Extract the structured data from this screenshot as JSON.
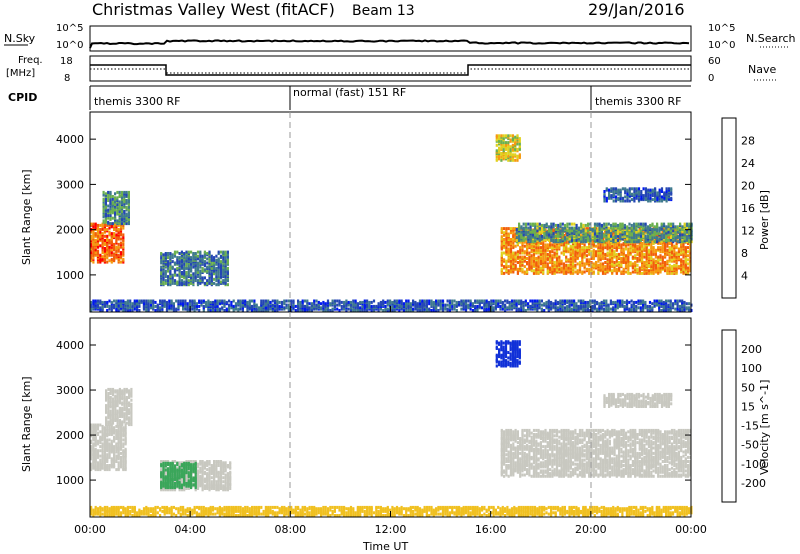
{
  "header": {
    "title": "Christmas Valley West (fitACF)",
    "beam": "Beam 13",
    "date": "29/Jan/2016"
  },
  "nsky_panel": {
    "left_label": "N.Sky",
    "right_label": "N.Search",
    "tick_top": "10^5",
    "tick_bottom": "10^0",
    "right_tick_top": "10^5",
    "right_tick_bottom": "10^0"
  },
  "freq_panel": {
    "left_label_1": "Freq.",
    "left_label_2": "[MHz]",
    "right_label": "Nave",
    "tick_top": "18",
    "tick_bottom": "8",
    "right_tick_top": "60",
    "right_tick_bottom": "0"
  },
  "cpid_panel": {
    "label": "CPID",
    "segments": [
      {
        "text": "themis 3300 RF",
        "start_hr": 0
      },
      {
        "text": "normal (fast) 151 RF",
        "start_hr": 8
      },
      {
        "text": "themis 3300 RF",
        "start_hr": 20
      }
    ]
  },
  "chart_data": [
    {
      "type": "heatmap",
      "panel": "power",
      "ylabel": "Slant Range [km]",
      "y_ticks": [
        "1000",
        "2000",
        "3000",
        "4000"
      ],
      "y_tick_values": [
        1000,
        2000,
        3000,
        4000
      ],
      "ylim": [
        180,
        4600
      ],
      "xlim_hours": [
        0,
        24
      ],
      "colorbar": {
        "label": "Power [dB]",
        "ticks": [
          "4",
          "8",
          "12",
          "16",
          "20",
          "24",
          "28"
        ],
        "colors": [
          "#0018f0",
          "#2446b4",
          "#3f7a8e",
          "#6bb04f",
          "#e0d21f",
          "#f59a10",
          "#f25e0a",
          "#ff0000"
        ]
      },
      "regions": [
        {
          "t0": 0.0,
          "t1": 1.3,
          "r0": 1250,
          "r1": 2100,
          "value": 27
        },
        {
          "t0": 0.5,
          "t1": 1.6,
          "r0": 2100,
          "r1": 2800,
          "value": 13
        },
        {
          "t0": 2.8,
          "t1": 5.5,
          "r0": 750,
          "r1": 1500,
          "value": 11
        },
        {
          "t0": 0.0,
          "t1": 24.0,
          "r0": 180,
          "r1": 420,
          "value": 9
        },
        {
          "t0": 16.2,
          "t1": 17.2,
          "r0": 3500,
          "r1": 4050,
          "value": 20
        },
        {
          "t0": 16.4,
          "t1": 24.0,
          "r0": 1000,
          "r1": 2000,
          "value": 25
        },
        {
          "t0": 17.0,
          "t1": 24.0,
          "r0": 1700,
          "r1": 2100,
          "value": 14
        },
        {
          "t0": 20.5,
          "t1": 23.2,
          "r0": 2600,
          "r1": 2900,
          "value": 9
        }
      ]
    },
    {
      "type": "heatmap",
      "panel": "velocity",
      "ylabel": "Slant Range [km]",
      "xlabel": "Time UT",
      "x_ticks": [
        "00:00",
        "04:00",
        "08:00",
        "12:00",
        "16:00",
        "20:00",
        "00:00"
      ],
      "x_tick_hours": [
        0,
        4,
        8,
        12,
        16,
        20,
        24
      ],
      "y_ticks": [
        "1000",
        "2000",
        "3000",
        "4000"
      ],
      "y_tick_values": [
        1000,
        2000,
        3000,
        4000
      ],
      "ylim": [
        180,
        4600
      ],
      "xlim_hours": [
        0,
        24
      ],
      "colorbar": {
        "label": "Velocity [m s^-1]",
        "ticks": [
          "200",
          "100",
          "50",
          "15",
          "-15",
          "-50",
          "-100",
          "-200"
        ],
        "colors": [
          "#1030d8",
          "#2a6ec8",
          "#3aa65a",
          "#8ad040",
          "#c8c8c0",
          "#f0c020",
          "#f59020",
          "#f05010",
          "#f00000"
        ]
      },
      "regions": [
        {
          "t0": 0.0,
          "t1": 1.4,
          "r0": 1200,
          "r1": 2200,
          "value": 0
        },
        {
          "t0": 0.6,
          "t1": 1.7,
          "r0": 2200,
          "r1": 3000,
          "value": 0
        },
        {
          "t0": 2.8,
          "t1": 5.6,
          "r0": 750,
          "r1": 1400,
          "value": 0
        },
        {
          "t0": 2.8,
          "t1": 4.2,
          "r0": 800,
          "r1": 1350,
          "value": 40
        },
        {
          "t0": 0.0,
          "t1": 24.0,
          "r0": 180,
          "r1": 380,
          "value": -40
        },
        {
          "t0": 16.2,
          "t1": 17.2,
          "r0": 3500,
          "r1": 4050,
          "value": 210
        },
        {
          "t0": 16.4,
          "t1": 24.0,
          "r0": 1050,
          "r1": 2100,
          "value": 0
        },
        {
          "t0": 20.5,
          "t1": 23.2,
          "r0": 2600,
          "r1": 2900,
          "value": 0
        }
      ]
    }
  ]
}
